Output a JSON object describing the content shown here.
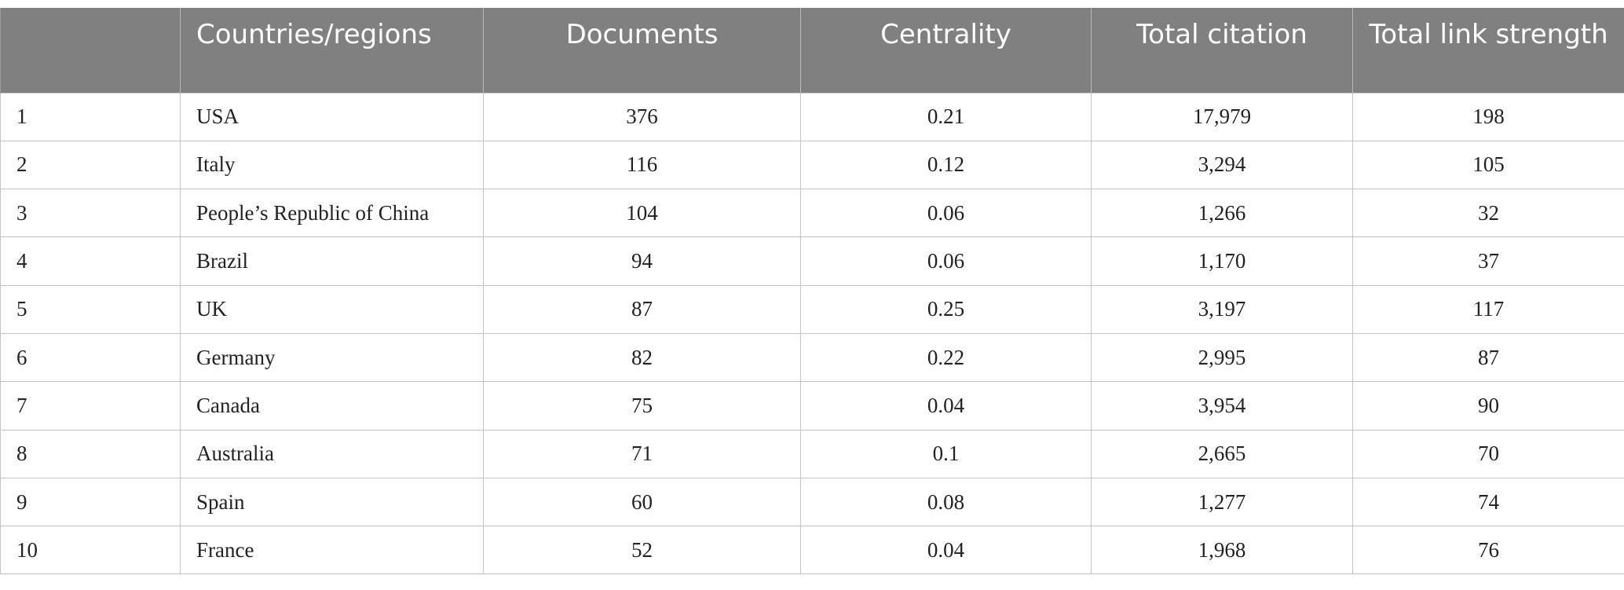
{
  "table": {
    "headers": [
      "",
      "Countries/regions",
      "Documents",
      "Centrality",
      "Total citation",
      "Total link strength"
    ],
    "rows": [
      [
        "1",
        "USA",
        "376",
        "0.21",
        "17,979",
        "198"
      ],
      [
        "2",
        "Italy",
        "116",
        "0.12",
        "3,294",
        "105"
      ],
      [
        "3",
        "People’s Republic of China",
        "104",
        "0.06",
        "1,266",
        "32"
      ],
      [
        "4",
        "Brazil",
        "94",
        "0.06",
        "1,170",
        "37"
      ],
      [
        "5",
        "UK",
        "87",
        "0.25",
        "3,197",
        "117"
      ],
      [
        "6",
        "Germany",
        "82",
        "0.22",
        "2,995",
        "87"
      ],
      [
        "7",
        "Canada",
        "75",
        "0.04",
        "3,954",
        "90"
      ],
      [
        "8",
        "Australia",
        "71",
        "0.1",
        "2,665",
        "70"
      ],
      [
        "9",
        "Spain",
        "60",
        "0.08",
        "1,277",
        "74"
      ],
      [
        "10",
        "France",
        "52",
        "0.04",
        "1,968",
        "76"
      ]
    ]
  },
  "colors": {
    "header_bg": "#808080",
    "header_text": "#ffffff",
    "grid_line": "#c4c4c4"
  }
}
